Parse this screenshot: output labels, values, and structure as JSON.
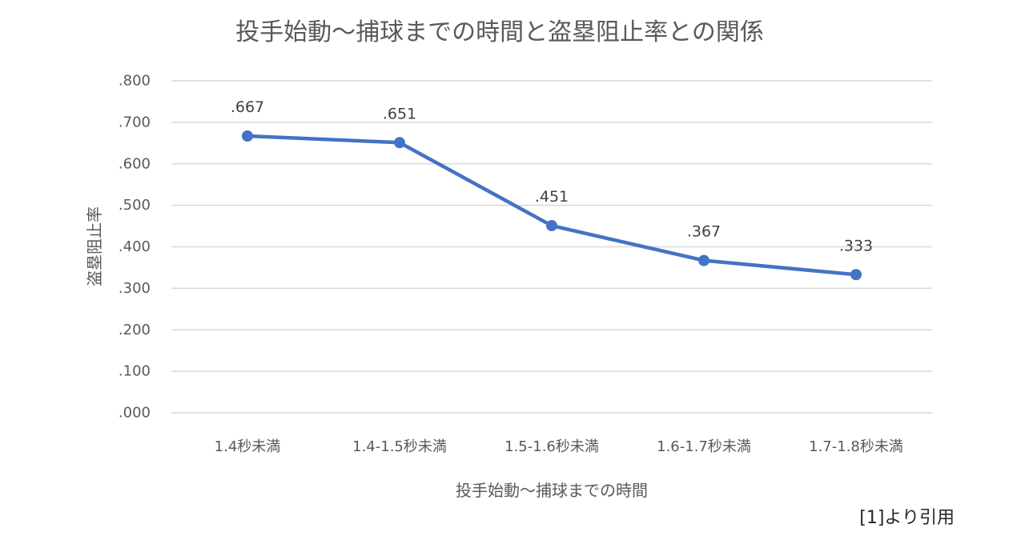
{
  "chart_data": {
    "type": "line",
    "title": "投手始動～捕球までの時間と盗塁阻止率との関係",
    "xlabel": "投手始動～捕球までの時間",
    "ylabel": "盗塁阻止率",
    "categories": [
      "1.4秒未満",
      "1.4-1.5秒未満",
      "1.5-1.6秒未満",
      "1.6-1.7秒未満",
      "1.7-1.8秒未満"
    ],
    "series": [
      {
        "values": [
          0.667,
          0.651,
          0.451,
          0.367,
          0.333
        ]
      }
    ],
    "data_labels": [
      ".667",
      ".651",
      ".451",
      ".367",
      ".333"
    ],
    "yticks": [
      ".000",
      ".100",
      ".200",
      ".300",
      ".400",
      ".500",
      ".600",
      ".700",
      ".800"
    ],
    "ylim": [
      0,
      0.8
    ],
    "grid": true,
    "legend": "none",
    "colors": {
      "series": "#4472c4",
      "grid": "#d9d9d9",
      "text": "#595959"
    }
  },
  "source_note": "[1]より引用"
}
